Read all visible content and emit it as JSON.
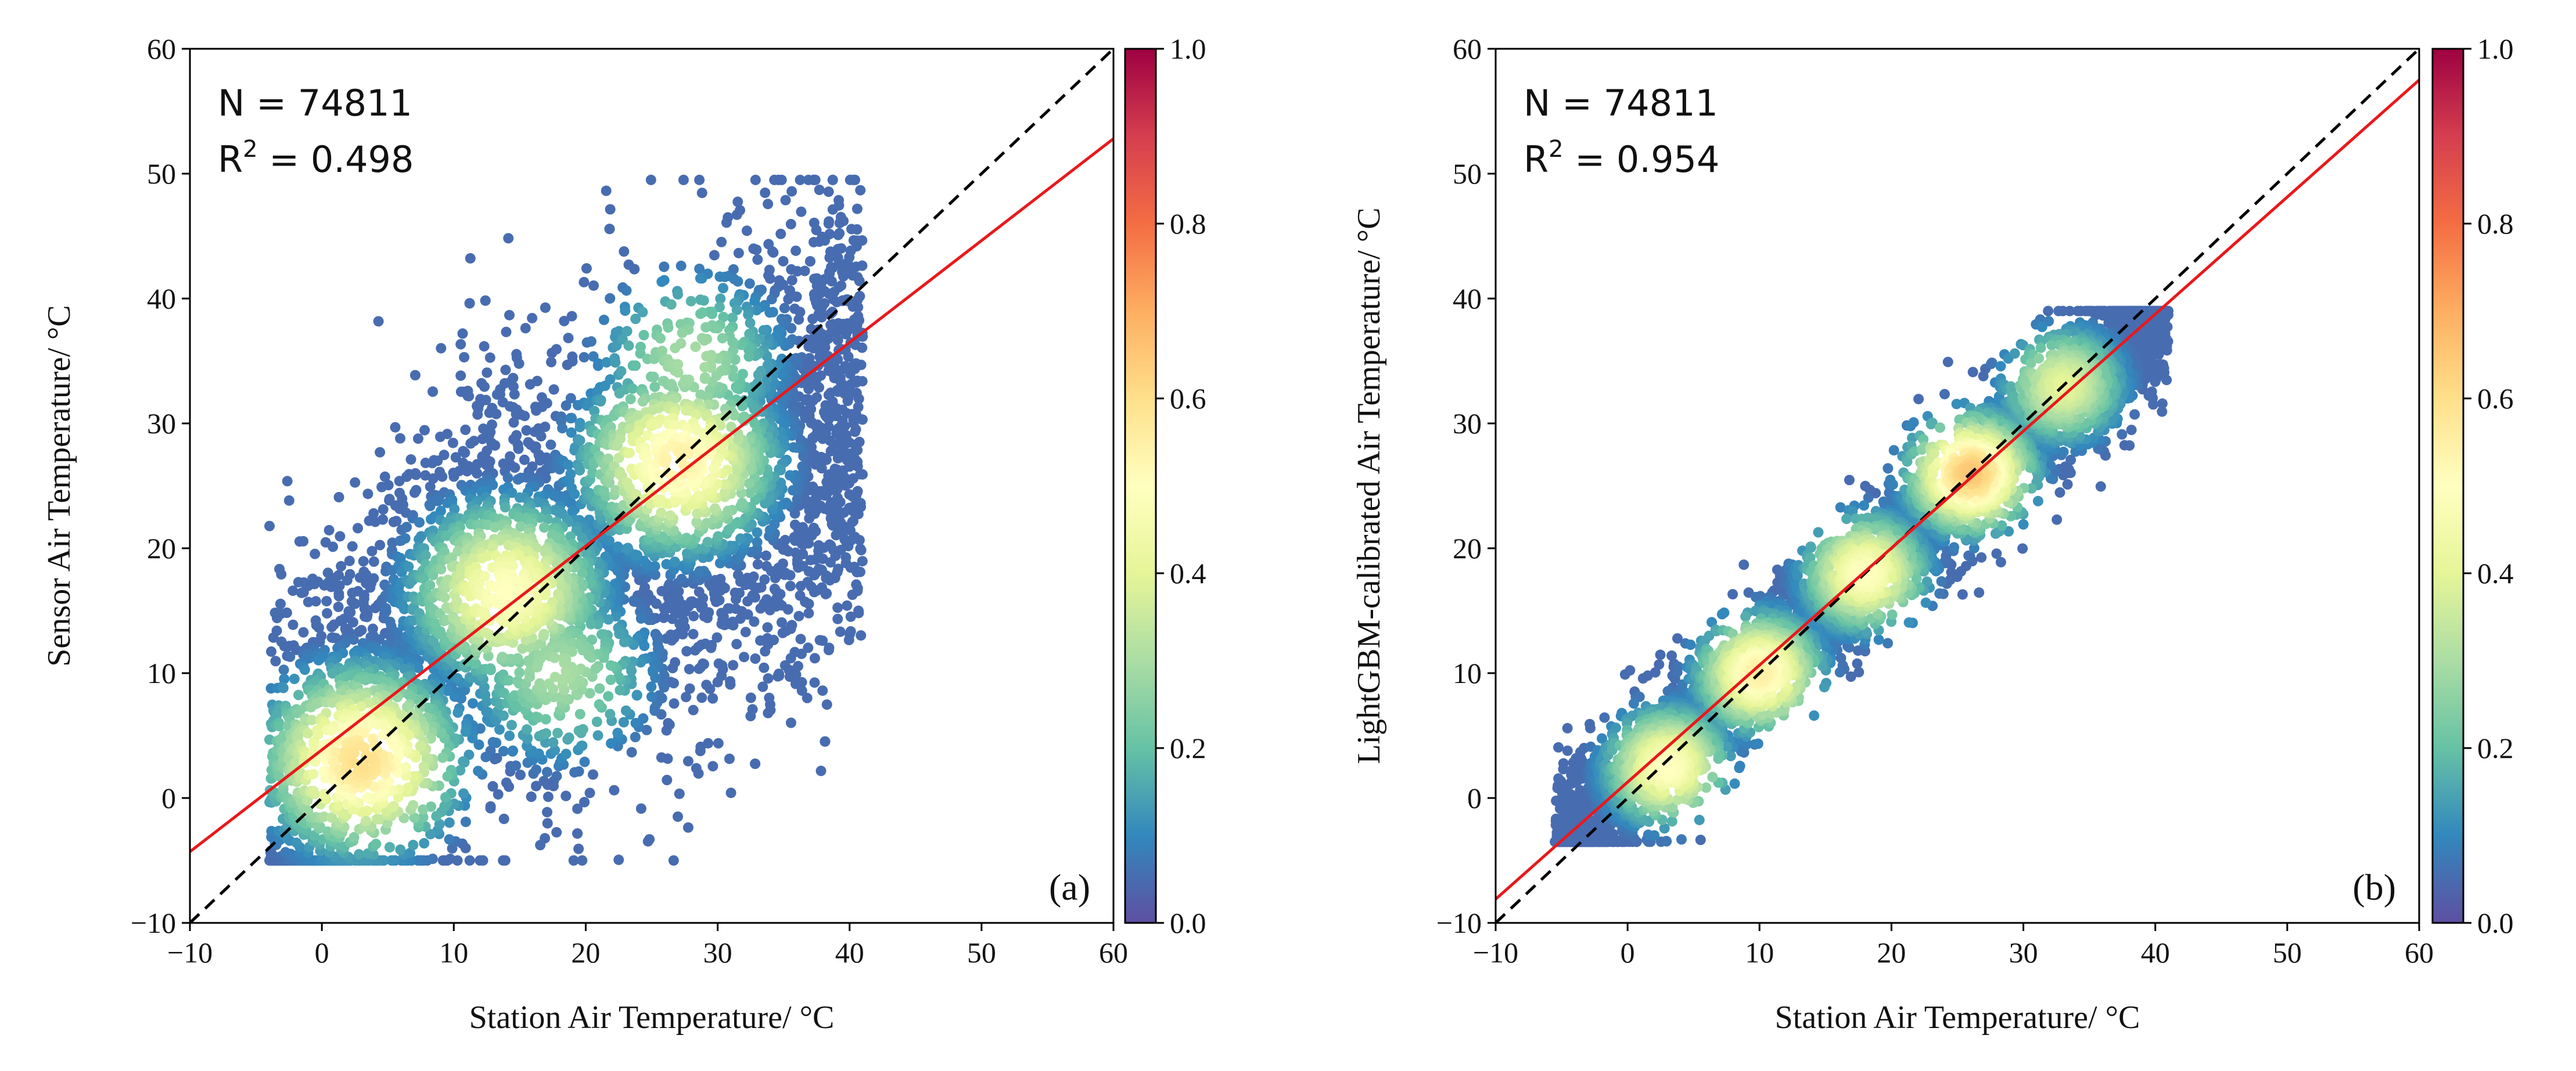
{
  "chart_data": [
    {
      "type": "scatter",
      "panel_label": "(a)",
      "title": "",
      "xlabel": "Station Air Temperature/ °C",
      "ylabel": "Sensor Air Temperature/ °C",
      "xlim": [
        -10,
        60
      ],
      "ylim": [
        -10,
        60
      ],
      "xticks": [
        -10,
        0,
        10,
        20,
        30,
        40,
        50,
        60
      ],
      "yticks": [
        -10,
        0,
        10,
        20,
        30,
        40,
        50,
        60
      ],
      "xtick_labels": [
        "−10",
        "0",
        "10",
        "20",
        "30",
        "40",
        "50",
        "60"
      ],
      "ytick_labels": [
        "−10",
        "0",
        "10",
        "20",
        "30",
        "40",
        "50",
        "60"
      ],
      "n_label": "N = 74811",
      "r2_base": "R",
      "r2_sup": "2",
      "r2_value": " = 0.498",
      "n": 74811,
      "r2": 0.498,
      "identity_line": {
        "style": "black dashed",
        "x": [
          -10,
          60
        ],
        "y": [
          -10,
          60
        ]
      },
      "fit_line": {
        "color": "#e8191b",
        "x": [
          -10,
          60
        ],
        "y": [
          -4.3,
          52.8
        ]
      },
      "density_clusters": [
        {
          "x": 3,
          "y": 3,
          "density": 0.6
        },
        {
          "x": 14,
          "y": 16.5,
          "density": 0.5
        },
        {
          "x": 27,
          "y": 27,
          "density": 0.55
        },
        {
          "x": 28,
          "y": 35,
          "density": 0.3
        },
        {
          "x": 18,
          "y": 10,
          "density": 0.3
        }
      ],
      "colorbar": {
        "min": 0.0,
        "max": 1.0,
        "ticks": [
          0.0,
          0.2,
          0.4,
          0.6,
          0.8,
          1.0
        ],
        "tick_labels": [
          "0.0",
          "0.2",
          "0.4",
          "0.6",
          "0.8",
          "1.0"
        ],
        "colormap": "Spectral_r"
      }
    },
    {
      "type": "scatter",
      "panel_label": "(b)",
      "title": "",
      "xlabel": "Station Air Temperature/ °C",
      "ylabel": "LightGBM-calibrated Air Temperature/ °C",
      "xlim": [
        -10,
        60
      ],
      "ylim": [
        -10,
        60
      ],
      "xticks": [
        -10,
        0,
        10,
        20,
        30,
        40,
        50,
        60
      ],
      "yticks": [
        -10,
        0,
        10,
        20,
        30,
        40,
        50,
        60
      ],
      "xtick_labels": [
        "−10",
        "0",
        "10",
        "20",
        "30",
        "40",
        "50",
        "60"
      ],
      "ytick_labels": [
        "−10",
        "0",
        "10",
        "20",
        "30",
        "40",
        "50",
        "60"
      ],
      "n_label": "N = 74811",
      "r2_base": "R",
      "r2_sup": "2",
      "r2_value": " = 0.954",
      "n": 74811,
      "r2": 0.954,
      "identity_line": {
        "style": "black dashed",
        "x": [
          -10,
          60
        ],
        "y": [
          -10,
          60
        ]
      },
      "fit_line": {
        "color": "#e8191b",
        "x": [
          -10,
          60
        ],
        "y": [
          -8.1,
          57.5
        ]
      },
      "density_clusters": [
        {
          "x": 3,
          "y": 2.5,
          "density": 0.5
        },
        {
          "x": 10,
          "y": 10,
          "density": 0.55
        },
        {
          "x": 18,
          "y": 18,
          "density": 0.5
        },
        {
          "x": 26,
          "y": 26,
          "density": 0.65
        },
        {
          "x": 33,
          "y": 33,
          "density": 0.4
        }
      ],
      "colorbar": {
        "min": 0.0,
        "max": 1.0,
        "ticks": [
          0.0,
          0.2,
          0.4,
          0.6,
          0.8,
          1.0
        ],
        "tick_labels": [
          "0.0",
          "0.2",
          "0.4",
          "0.6",
          "0.8",
          "1.0"
        ],
        "colormap": "Spectral_r"
      }
    }
  ]
}
